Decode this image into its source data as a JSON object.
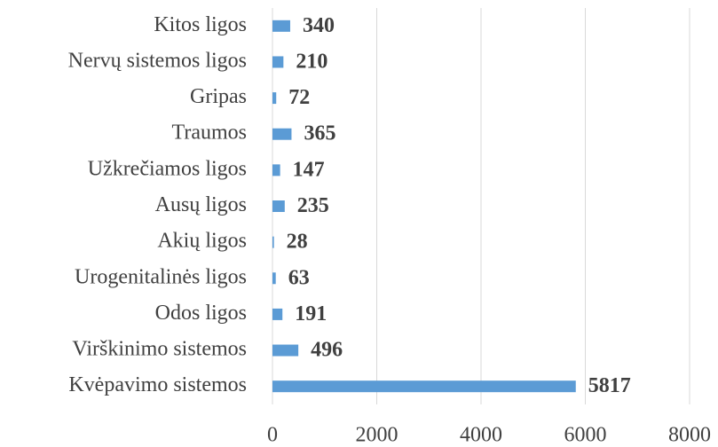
{
  "chart_data": {
    "type": "bar",
    "orientation": "horizontal",
    "categories": [
      "Kitos ligos",
      "Nervų sistemos ligos",
      "Gripas",
      "Traumos",
      "Užkrečiamos ligos",
      "Ausų ligos",
      "Akių ligos",
      "Urogenitalinės ligos",
      "Odos ligos",
      "Virškinimo sistemos",
      "Kvėpavimo sistemos"
    ],
    "values": [
      340,
      210,
      72,
      365,
      147,
      235,
      28,
      63,
      191,
      496,
      5817
    ],
    "color": "#5b9bd5",
    "xlim": [
      0,
      8000
    ],
    "xticks": [
      0,
      2000,
      4000,
      6000,
      8000
    ],
    "grid": true
  }
}
